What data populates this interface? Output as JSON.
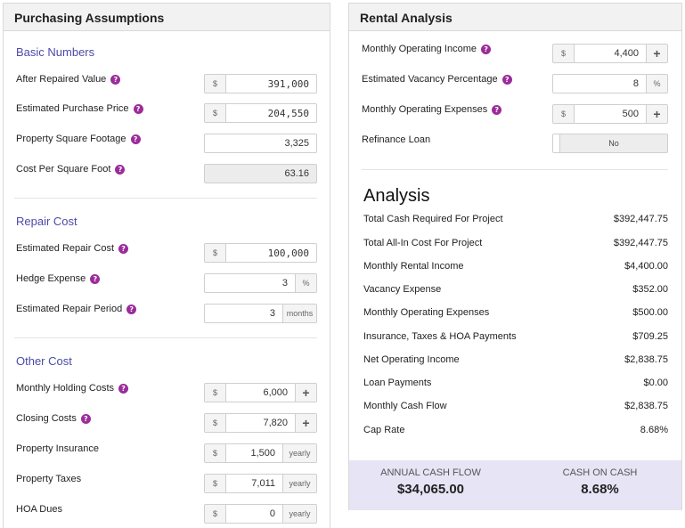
{
  "purchasing": {
    "title": "Purchasing Assumptions",
    "basic": {
      "title": "Basic Numbers",
      "after_repaired_value": {
        "label": "After Repaired Value",
        "prefix": "$",
        "value": "391,000"
      },
      "purchase_price": {
        "label": "Estimated Purchase Price",
        "prefix": "$",
        "value": "204,550"
      },
      "square_footage": {
        "label": "Property Square Footage",
        "value": "3,325"
      },
      "cost_per_sqft": {
        "label": "Cost Per Square Foot",
        "value": "63.16"
      }
    },
    "repair": {
      "title": "Repair Cost",
      "repair_cost": {
        "label": "Estimated Repair Cost",
        "prefix": "$",
        "value": "100,000"
      },
      "hedge_expense": {
        "label": "Hedge Expense",
        "value": "3",
        "suffix": "%"
      },
      "repair_period": {
        "label": "Estimated Repair Period",
        "value": "3",
        "suffix": "months"
      }
    },
    "other": {
      "title": "Other Cost",
      "holding_costs": {
        "label": "Monthly Holding Costs",
        "prefix": "$",
        "value": "6,000",
        "action": "+"
      },
      "closing_costs": {
        "label": "Closing Costs",
        "prefix": "$",
        "value": "7,820",
        "action": "+"
      },
      "insurance": {
        "label": "Property Insurance",
        "prefix": "$",
        "value": "1,500",
        "suffix": "yearly"
      },
      "taxes": {
        "label": "Property Taxes",
        "prefix": "$",
        "value": "7,011",
        "suffix": "yearly"
      },
      "hoa": {
        "label": "HOA Dues",
        "prefix": "$",
        "value": "0",
        "suffix": "yearly"
      }
    }
  },
  "rental": {
    "title": "Rental Analysis",
    "operating_income": {
      "label": "Monthly Operating Income",
      "prefix": "$",
      "value": "4,400",
      "action": "+"
    },
    "vacancy": {
      "label": "Estimated Vacancy Percentage",
      "value": "8",
      "suffix": "%"
    },
    "operating_expenses": {
      "label": "Monthly Operating Expenses",
      "prefix": "$",
      "value": "500",
      "action": "+"
    },
    "refinance": {
      "label": "Refinance Loan",
      "value": "No"
    },
    "analysis": {
      "title": "Analysis",
      "rows": [
        {
          "label": "Total Cash Required For Project",
          "value": "$392,447.75"
        },
        {
          "label": "Total All-In Cost For Project",
          "value": "$392,447.75"
        },
        {
          "label": "Monthly Rental Income",
          "value": "$4,400.00"
        },
        {
          "label": "Vacancy Expense",
          "value": "$352.00"
        },
        {
          "label": "Monthly Operating Expenses",
          "value": "$500.00"
        },
        {
          "label": "Insurance, Taxes & HOA Payments",
          "value": "$709.25"
        },
        {
          "label": "Net Operating Income",
          "value": "$2,838.75"
        },
        {
          "label": "Loan Payments",
          "value": "$0.00"
        },
        {
          "label": "Monthly Cash Flow",
          "value": "$2,838.75"
        },
        {
          "label": "Cap Rate",
          "value": "8.68%"
        }
      ]
    },
    "summary": {
      "annual_cash_flow": {
        "label": "ANNUAL CASH FLOW",
        "value": "$34,065.00"
      },
      "cash_on_cash": {
        "label": "CASH ON CASH",
        "value": "8.68%"
      }
    }
  },
  "icons": {
    "help": "?"
  },
  "colors": {
    "accent": "#4b4aa8",
    "help_icon": "#9b2c9b",
    "summary_bg": "#e6e4f5"
  }
}
